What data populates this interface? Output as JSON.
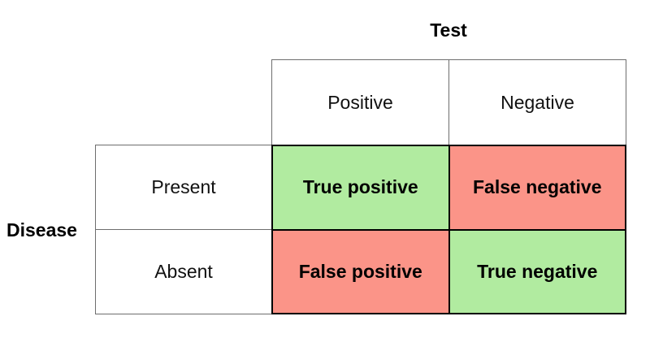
{
  "axes": {
    "column_axis_label": "Test",
    "row_axis_label": "Disease"
  },
  "columns": {
    "positive": "Positive",
    "negative": "Negative"
  },
  "rows": {
    "present": "Present",
    "absent": "Absent"
  },
  "cells": {
    "true_positive": {
      "label": "True positive",
      "color": "#b1eba0"
    },
    "false_negative": {
      "label": "False negative",
      "color": "#fb9488"
    },
    "false_positive": {
      "label": "False positive",
      "color": "#fb9488"
    },
    "true_negative": {
      "label": "True negative",
      "color": "#b1eba0"
    }
  },
  "colors": {
    "correct_result": "#b1eba0",
    "incorrect_result": "#fb9488",
    "thin_border": "#6e6e6e",
    "thick_border": "#000000",
    "background": "#ffffff"
  }
}
